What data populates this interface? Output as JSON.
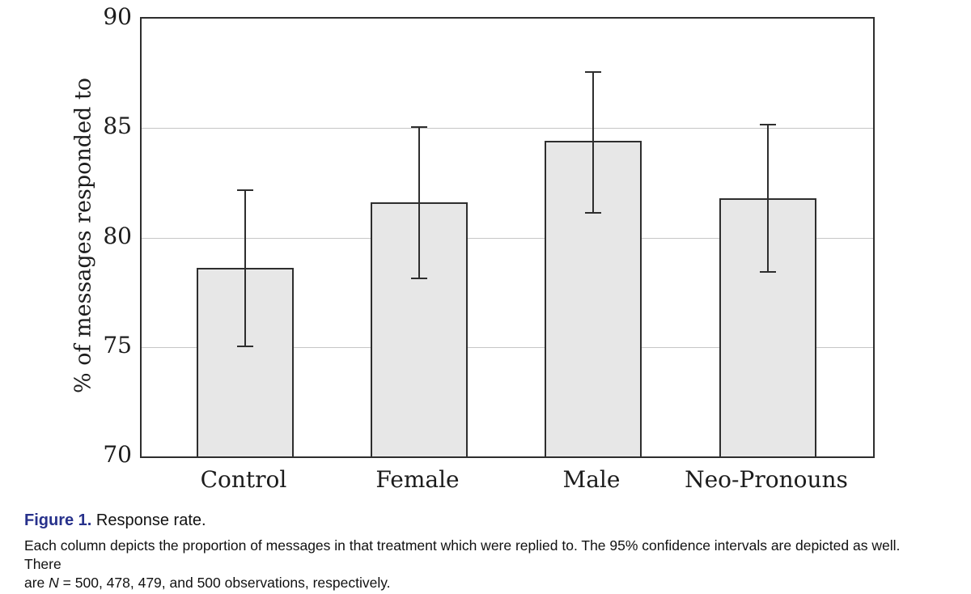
{
  "chart_data": {
    "type": "bar",
    "categories": [
      "Control",
      "Female",
      "Male",
      "Neo-Pronouns"
    ],
    "values": [
      78.6,
      81.6,
      84.4,
      81.8
    ],
    "error_low": [
      75.0,
      78.1,
      81.1,
      78.4
    ],
    "error_high": [
      82.2,
      85.1,
      87.6,
      85.2
    ],
    "title": "",
    "xlabel": "",
    "ylabel": "% of messages responded to",
    "ylim": [
      70,
      90
    ],
    "yticks": [
      70,
      75,
      80,
      85,
      90
    ],
    "grid": "horizontal gridlines at interior ticks (75, 80, 85)",
    "legend_position": "none",
    "colors": {
      "bar_fill": "#e7e7e7",
      "bar_border": "#2e2e2e",
      "gridline": "#c6c6c6",
      "axis_frame": "#2e2e2e",
      "text": "#1c1c1c"
    }
  },
  "caption": {
    "label": "Figure 1.",
    "title": "Response rate.",
    "label_color": "#27318b",
    "body_line1": "Each column depicts the proportion of messages in that treatment which were replied to. The 95% confidence intervals are depicted as well. There",
    "body_line2_prefix": "are ",
    "body_line2_n": "N",
    "body_line2_suffix": " = 500, 478, 479, and 500 observations, respectively."
  }
}
